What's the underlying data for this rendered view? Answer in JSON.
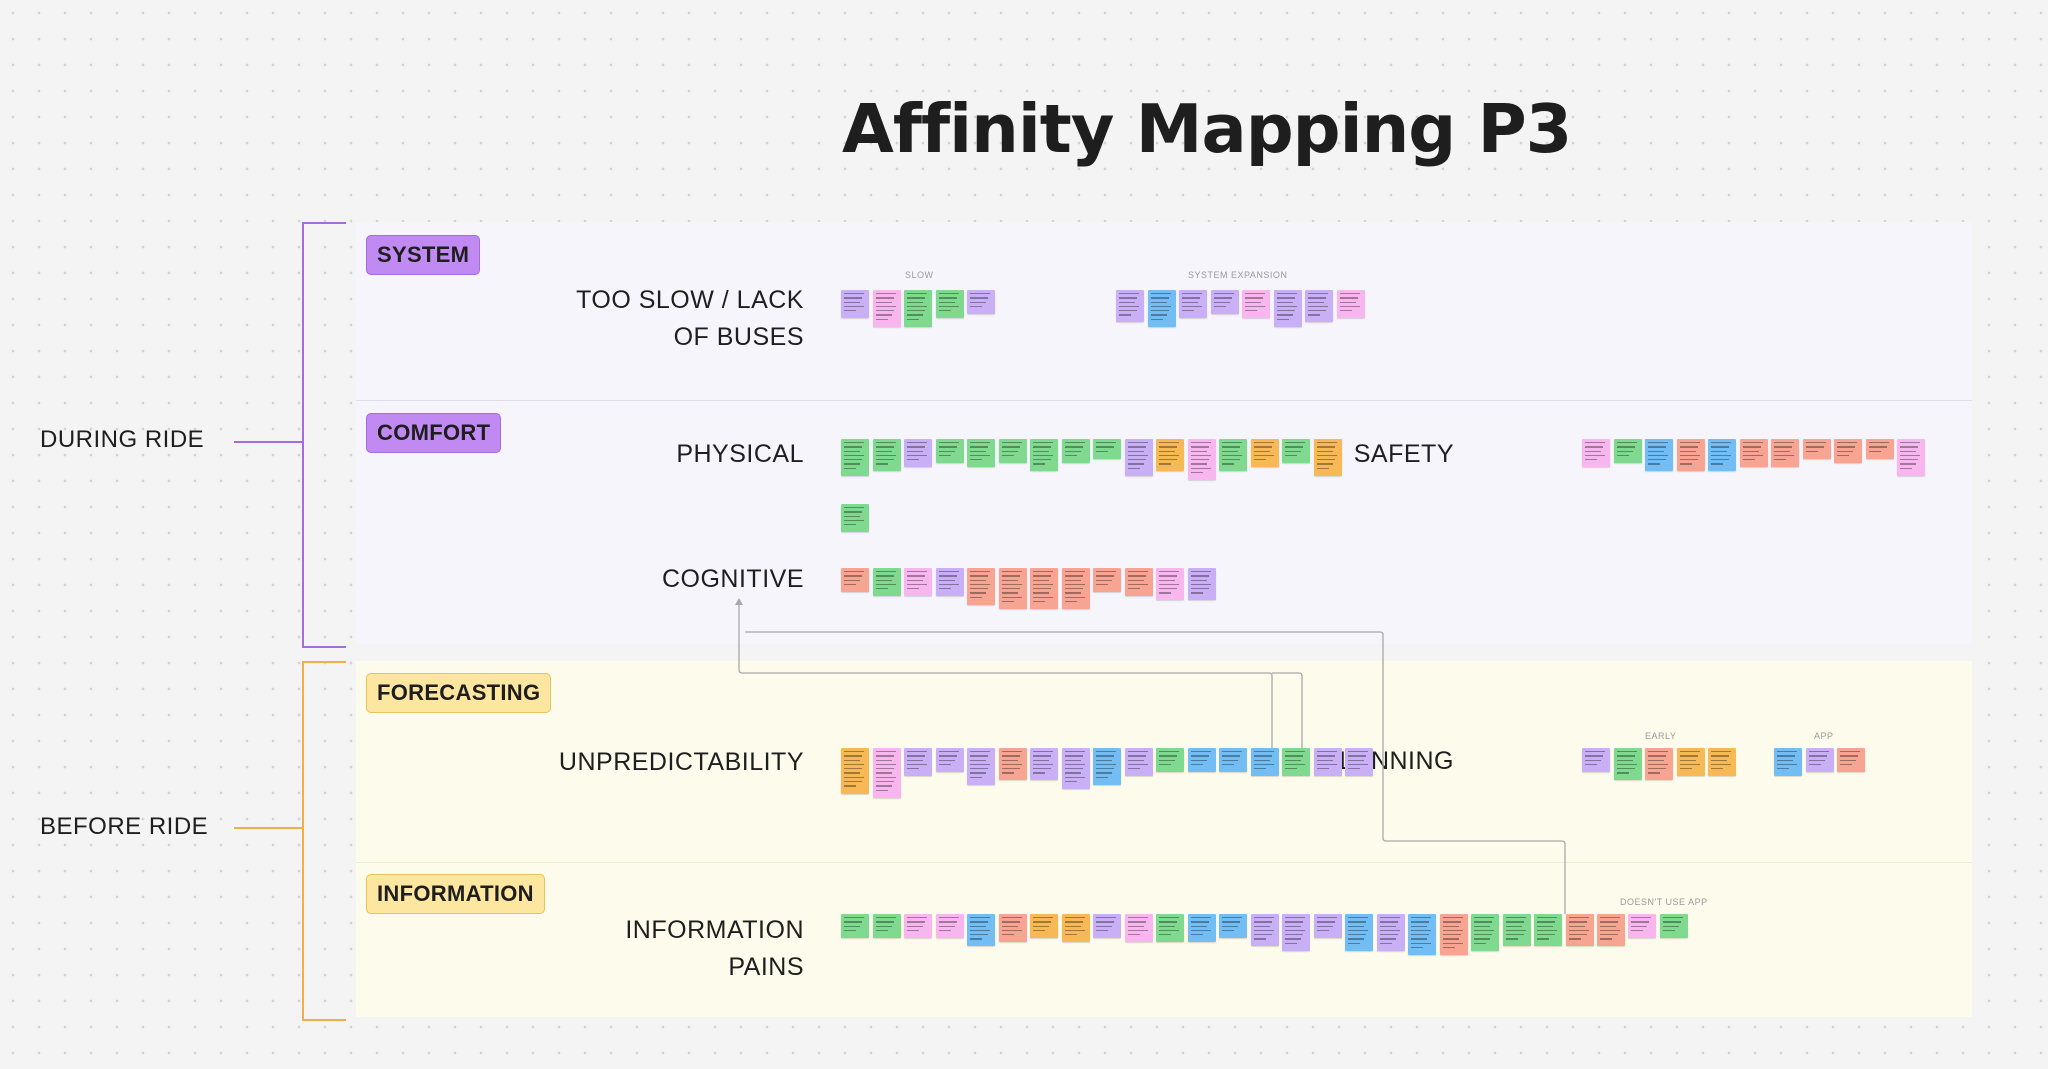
{
  "title": "Affinity Mapping P3",
  "rows": {
    "during": "DURING RIDE",
    "before": "BEFORE RIDE"
  },
  "tags": {
    "system": "SYSTEM",
    "comfort": "COMFORT",
    "forecasting": "FORECASTING",
    "information": "INFORMATION"
  },
  "sections": {
    "too_slow_line1": "TOO SLOW / LACK",
    "too_slow_line2": "OF BUSES",
    "physical": "PHYSICAL",
    "safety": "SAFETY",
    "cognitive": "COGNITIVE",
    "unpredictability": "UNPREDICTABILITY",
    "planning": "PLANNING",
    "information_pains_line1": "INFORMATION",
    "information_pains_line2": "PAINS"
  },
  "mini_labels": {
    "slow": "SLOW",
    "system_expansion": "SYSTEM EXPANSION",
    "early": "EARLY",
    "app": "APP",
    "doesnt_use_app": "DOESN'T USE APP"
  },
  "colors": {
    "purple_accent": "#c08af2",
    "yellow_accent": "#fde6a0",
    "sticky_purple": "#c9aff5",
    "sticky_pink": "#f8b6ef",
    "sticky_green": "#7fd98f",
    "sticky_blue": "#73bdf5",
    "sticky_orange": "#f7b956",
    "sticky_salmon": "#f8a493",
    "connector": "#a8a8a8"
  }
}
